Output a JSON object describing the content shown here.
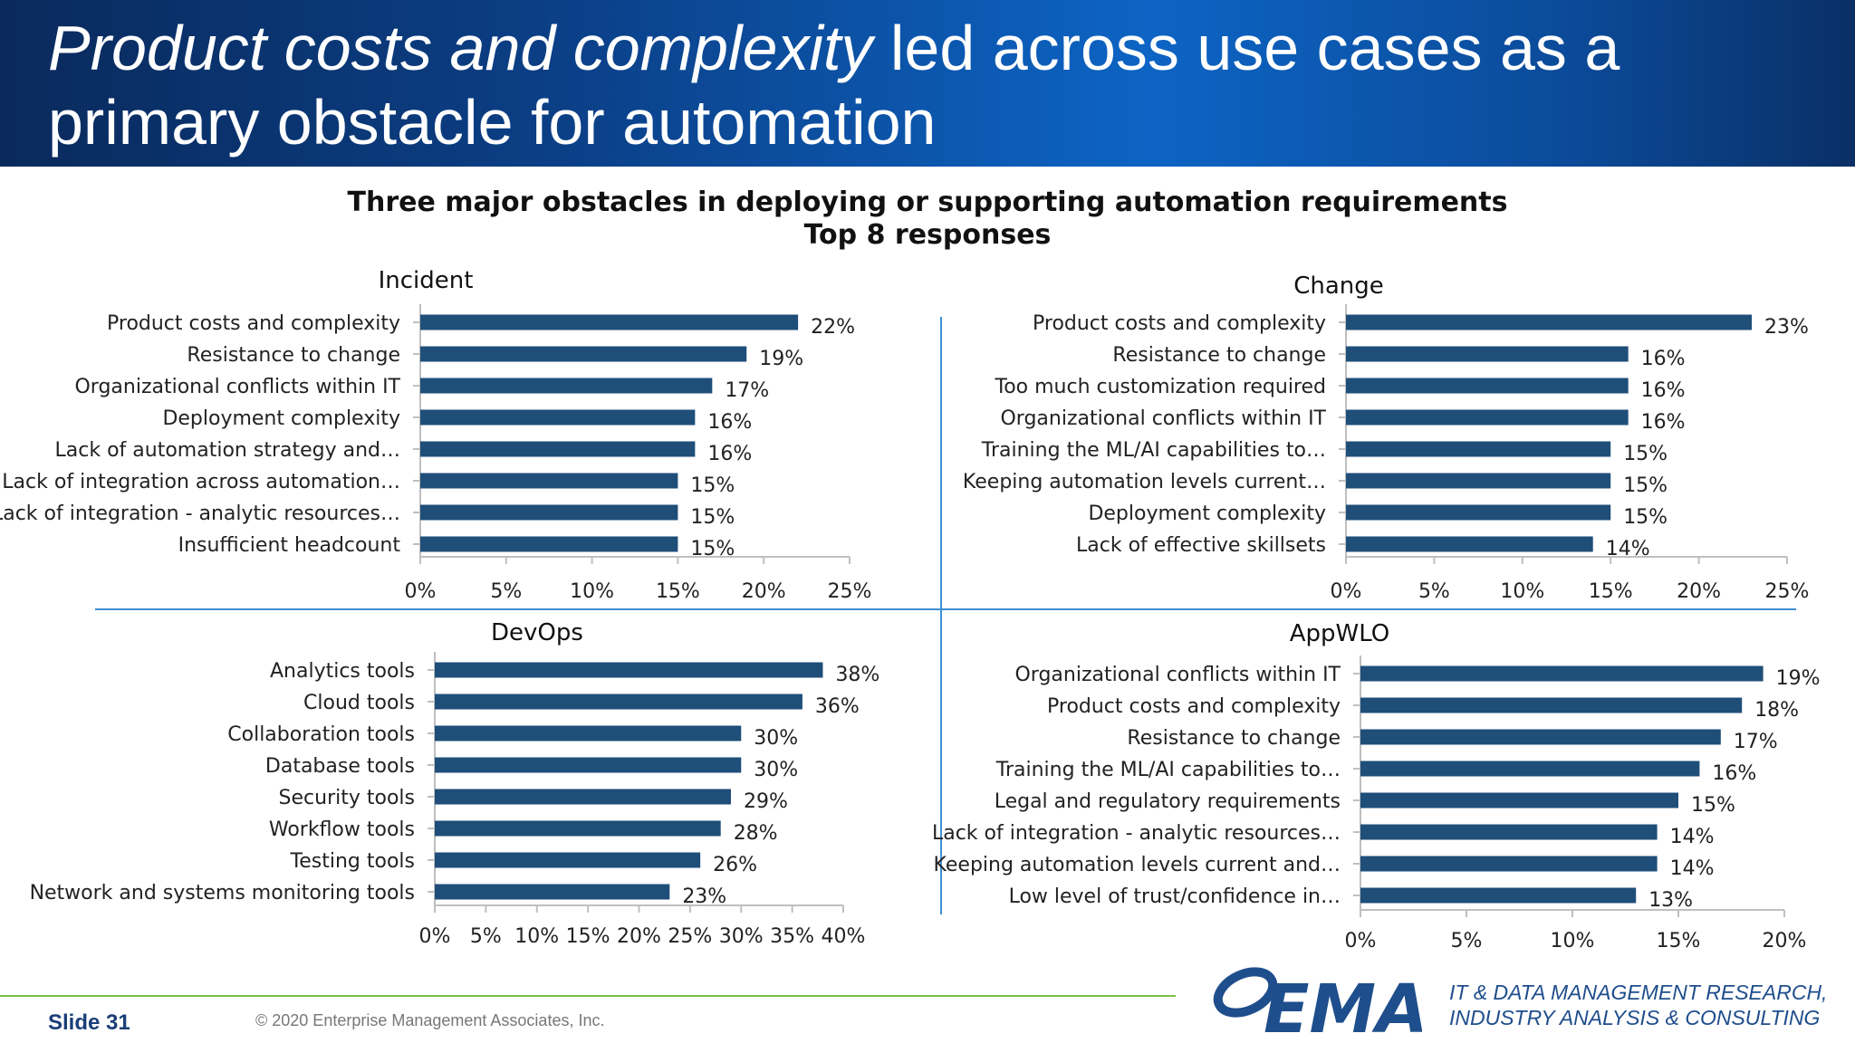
{
  "slide": {
    "title_italic": "Product costs and complexity",
    "title_rest": " led across use cases as a primary obstacle for automation",
    "chart_title_line1": "Three major obstacles in deploying or supporting automation requirements",
    "chart_title_line2": "Top 8 responses",
    "slide_number": "Slide 31",
    "copyright": "© 2020 Enterprise Management Associates, Inc.",
    "logo_text": "EMA",
    "tagline_line1": "IT & DATA MANAGEMENT RESEARCH,",
    "tagline_line2": "INDUSTRY ANALYSIS & CONSULTING"
  },
  "colors": {
    "bar": "#1f4e79",
    "accent_line": "#7ac143",
    "separator": "#3f8fd0",
    "header": "#0b4a98"
  },
  "chart_data": [
    {
      "type": "bar",
      "orientation": "horizontal",
      "title": "Incident",
      "categories": [
        "Product costs and complexity",
        "Resistance to change",
        "Organizational conflicts within IT",
        "Deployment complexity",
        "Lack of automation strategy and…",
        "Lack of integration across automation…",
        "Lack of integration - analytic resources…",
        "Insufficient headcount"
      ],
      "values": [
        22,
        19,
        17,
        16,
        16,
        15,
        15,
        15
      ],
      "data_labels": [
        "22%",
        "19%",
        "17%",
        "16%",
        "16%",
        "15%",
        "15%",
        "15%"
      ],
      "xlim": [
        0,
        25
      ],
      "xticks": [
        "0%",
        "5%",
        "10%",
        "15%",
        "20%",
        "25%"
      ]
    },
    {
      "type": "bar",
      "orientation": "horizontal",
      "title": "Change",
      "categories": [
        "Product costs and complexity",
        "Resistance to change",
        "Too much customization required",
        "Organizational conflicts within IT",
        "Training the ML/AI capabilities to…",
        "Keeping automation levels current…",
        "Deployment complexity",
        "Lack of effective skillsets"
      ],
      "values": [
        23,
        16,
        16,
        16,
        15,
        15,
        15,
        14
      ],
      "data_labels": [
        "23%",
        "16%",
        "16%",
        "16%",
        "15%",
        "15%",
        "15%",
        "14%"
      ],
      "xlim": [
        0,
        25
      ],
      "xticks": [
        "0%",
        "5%",
        "10%",
        "15%",
        "20%",
        "25%"
      ]
    },
    {
      "type": "bar",
      "orientation": "horizontal",
      "title": "DevOps",
      "categories": [
        "Analytics tools",
        "Cloud tools",
        "Collaboration tools",
        "Database tools",
        "Security tools",
        "Workflow tools",
        "Testing tools",
        "Network and systems monitoring tools"
      ],
      "values": [
        38,
        36,
        30,
        30,
        29,
        28,
        26,
        23
      ],
      "data_labels": [
        "38%",
        "36%",
        "30%",
        "30%",
        "29%",
        "28%",
        "26%",
        "23%"
      ],
      "xlim": [
        0,
        40
      ],
      "xticks": [
        "0%",
        "5%",
        "10%",
        "15%",
        "20%",
        "25%",
        "30%",
        "35%",
        "40%"
      ]
    },
    {
      "type": "bar",
      "orientation": "horizontal",
      "title": "AppWLO",
      "categories": [
        "Organizational conflicts within IT",
        "Product costs and complexity",
        "Resistance to change",
        "Training the ML/AI capabilities to…",
        "Legal and regulatory requirements",
        "Lack of integration - analytic resources…",
        "Keeping automation levels current and…",
        "Low level of trust/confidence in…"
      ],
      "values": [
        19,
        18,
        17,
        16,
        15,
        14,
        14,
        13
      ],
      "data_labels": [
        "19%",
        "18%",
        "17%",
        "16%",
        "15%",
        "14%",
        "14%",
        "13%"
      ],
      "xlim": [
        0,
        20
      ],
      "xticks": [
        "0%",
        "5%",
        "10%",
        "15%",
        "20%"
      ]
    }
  ]
}
